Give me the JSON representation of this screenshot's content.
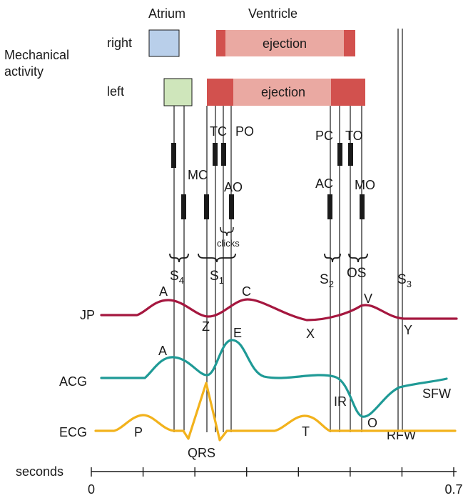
{
  "headers": {
    "atrium": "Atrium",
    "ventricle": "Ventricle"
  },
  "mechanical": {
    "line1": "Mechanical",
    "line2": "activity"
  },
  "rows": {
    "right": {
      "label": "right",
      "ejection": "ejection"
    },
    "left": {
      "label": "left",
      "ejection": "ejection"
    }
  },
  "valves": {
    "TC": "TC",
    "PO": "PO",
    "MC": "MC",
    "AO": "AO",
    "PC": "PC",
    "TO": "TO",
    "AC": "AC",
    "MO": "MO"
  },
  "clicks": "clicks",
  "sounds": {
    "S4": "S",
    "S4_sub": "4",
    "S1": "S",
    "S1_sub": "1",
    "S2": "S",
    "S2_sub": "2",
    "OS": "OS",
    "S3": "S",
    "S3_sub": "3"
  },
  "traces": {
    "jp": {
      "label": "JP",
      "A": "A",
      "C": "C",
      "Z": "Z",
      "X": "X",
      "V": "V",
      "Y": "Y"
    },
    "acg": {
      "label": "ACG",
      "A": "A",
      "E": "E",
      "IR": "IR",
      "O": "O",
      "RFW": "RFW",
      "SFW": "SFW"
    },
    "ecg": {
      "label": "ECG",
      "P": "P",
      "QRS": "QRS",
      "T": "T"
    }
  },
  "axis": {
    "label": "seconds",
    "min_label": "0",
    "max_label": "0.7",
    "min": 0,
    "max": 0.7,
    "tick_step": 0.1
  },
  "colors": {
    "right_atrium": "#b9cfea",
    "left_atrium": "#cfe6bb",
    "ejection_light": "#eaa9a2",
    "ejection_dark": "#d2514e",
    "jp": "#a5173f",
    "acg": "#1f9a96",
    "ecg": "#f2b21c"
  }
}
